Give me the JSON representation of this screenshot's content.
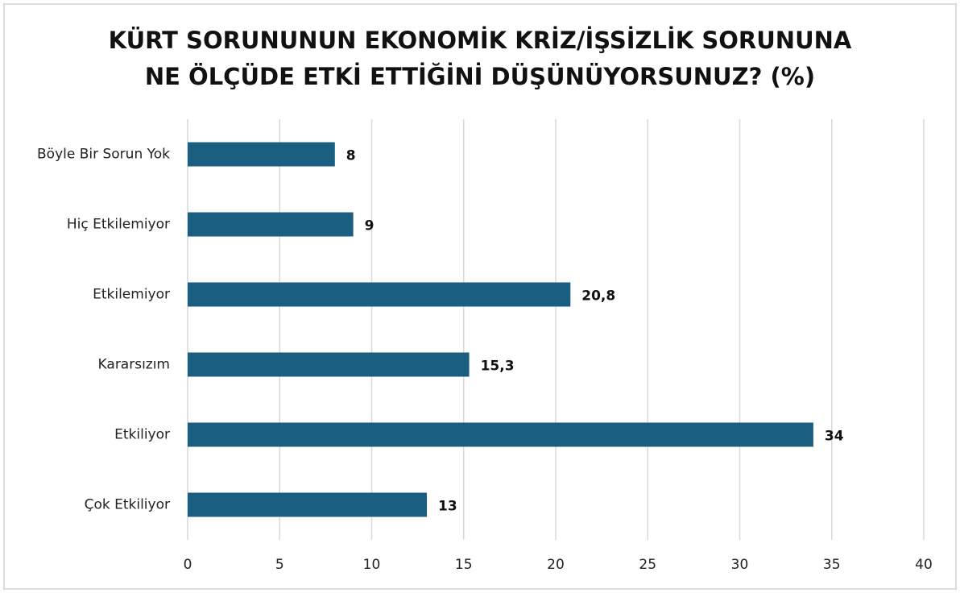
{
  "chart_data": {
    "type": "barh",
    "title": [
      "KÜRT SORUNUNUN  EKONOMİK KRİZ/İŞSİZLİK SORUNUNA",
      "NE ÖLÇÜDE ETKİ ETTİĞİNİ DÜŞÜNÜYORSUNUZ? (%)"
    ],
    "categories": [
      "Böyle Bir Sorun Yok",
      "Hiç Etkilemiyor",
      "Etkilemiyor",
      "Kararsızım",
      "Etkiliyor",
      "Çok Etkiliyor"
    ],
    "values": [
      8,
      9,
      20.8,
      15.3,
      34,
      13
    ],
    "value_labels": [
      "8",
      "9",
      "20,8",
      "15,3",
      "34",
      "13"
    ],
    "color": "#1a5e80",
    "xlim": [
      0,
      40
    ],
    "xticks": [
      0,
      5,
      10,
      15,
      20,
      25,
      30,
      35,
      40
    ],
    "grid": true
  }
}
